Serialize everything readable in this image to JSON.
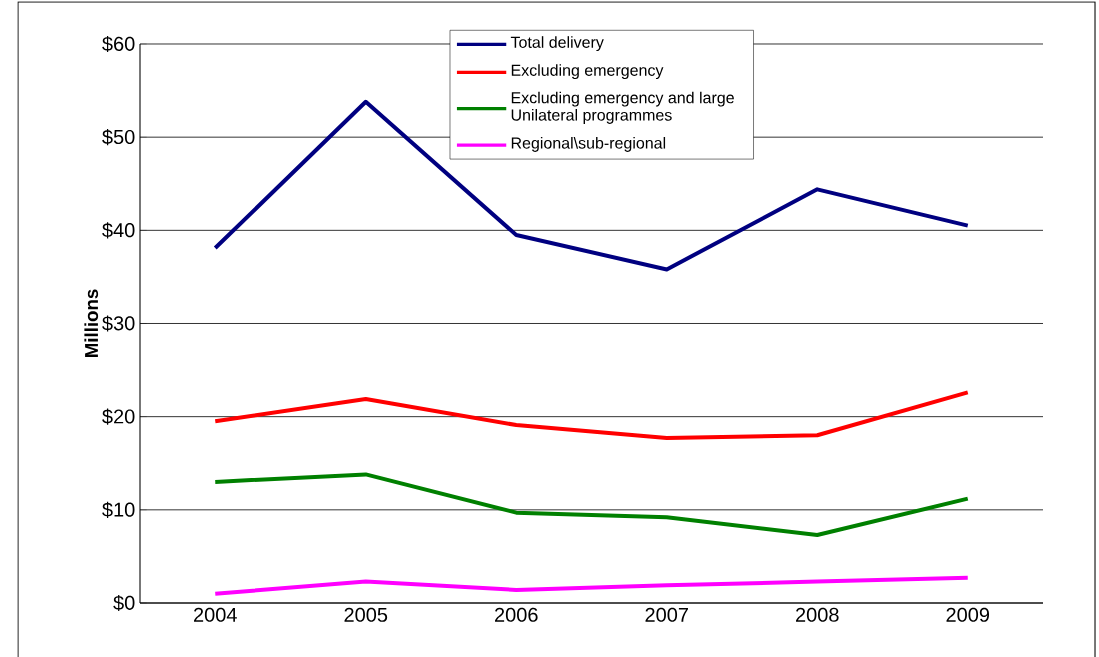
{
  "chart_data": {
    "type": "line",
    "ylabel": "Millions",
    "categories": [
      "2004",
      "2005",
      "2006",
      "2007",
      "2008",
      "2009"
    ],
    "series": [
      {
        "name": "Total delivery",
        "color": "#000080",
        "values": [
          38.1,
          53.8,
          39.5,
          35.8,
          44.4,
          40.5
        ]
      },
      {
        "name": "Excluding emergency",
        "color": "#ff0000",
        "values": [
          19.5,
          21.9,
          19.1,
          17.7,
          18.0,
          22.6
        ]
      },
      {
        "name": "Excluding emergency and large Unilateral programmes",
        "color": "#008000",
        "values": [
          13.0,
          13.8,
          9.7,
          9.2,
          7.3,
          11.2
        ]
      },
      {
        "name": "Regional\\sub-regional",
        "color": "#ff00ff",
        "values": [
          1.0,
          2.3,
          1.4,
          1.9,
          2.3,
          2.7
        ]
      }
    ],
    "ylim": [
      0,
      60
    ],
    "yticks": [
      {
        "value": 0,
        "label": "$0"
      },
      {
        "value": 10,
        "label": "$10"
      },
      {
        "value": 20,
        "label": "$20"
      },
      {
        "value": 30,
        "label": "$30"
      },
      {
        "value": 40,
        "label": "$40"
      },
      {
        "value": 50,
        "label": "$50"
      },
      {
        "value": 60,
        "label": "$60"
      }
    ],
    "grid": "y",
    "legend": "top",
    "marker": "none",
    "line_style": "solid"
  }
}
